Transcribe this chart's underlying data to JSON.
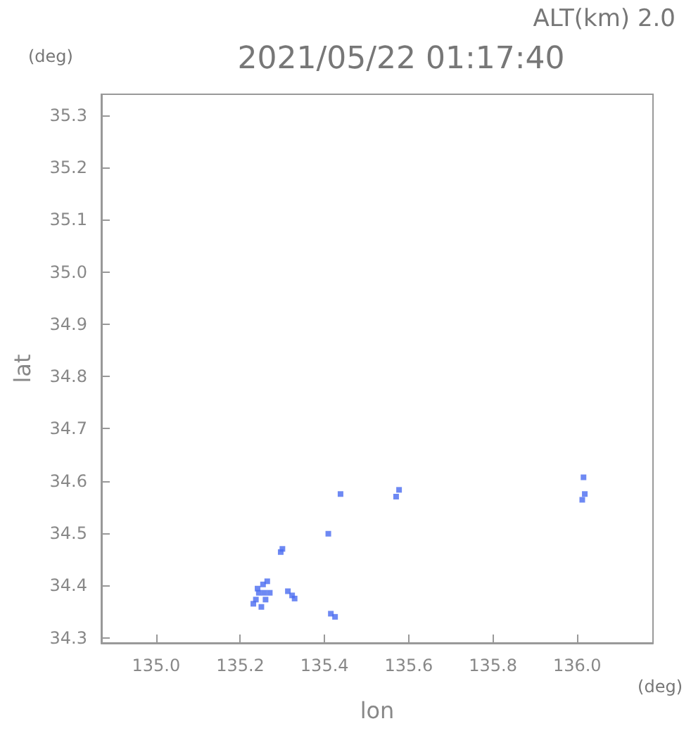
{
  "chart_data": {
    "type": "scatter",
    "title": "2021/05/22 01:17:40",
    "subtitle": "ALT(km) 2.0",
    "xlabel": "lon",
    "ylabel": "lat",
    "annotations": [
      "(deg)",
      "(deg)"
    ],
    "xlim": [
      134.87,
      136.18
    ],
    "xticks": [
      {
        "value": 135,
        "label": "135.0"
      },
      135.2,
      135.4,
      135.6,
      135.8,
      {
        "value": 136,
        "label": "136.0"
      }
    ],
    "ylim": [
      34.29,
      35.34
    ],
    "yticks": [
      34.3,
      34.4,
      34.5,
      34.6,
      34.7,
      34.8,
      34.9,
      {
        "value": 35,
        "label": "35.0"
      },
      35.1,
      35.2,
      35.3
    ],
    "grid": false,
    "marker": "square",
    "series": [
      {
        "color": "#4a6cf0",
        "x": [
          135.244,
          135.254,
          135.237,
          135.26,
          135.25,
          135.27,
          135.264,
          135.241,
          135.231,
          135.257,
          135.3,
          135.296,
          135.313,
          135.323,
          135.329,
          135.415,
          135.425,
          135.409,
          135.438,
          135.57,
          135.577,
          136.015,
          136.018,
          136.012
        ],
        "values": [
          34.386,
          34.402,
          34.373,
          34.373,
          34.359,
          34.386,
          34.408,
          34.394,
          34.365,
          34.386,
          34.47,
          34.464,
          34.389,
          34.381,
          34.375,
          34.346,
          34.34,
          34.499,
          34.575,
          34.57,
          34.583,
          34.607,
          34.575,
          34.564
        ]
      }
    ]
  }
}
